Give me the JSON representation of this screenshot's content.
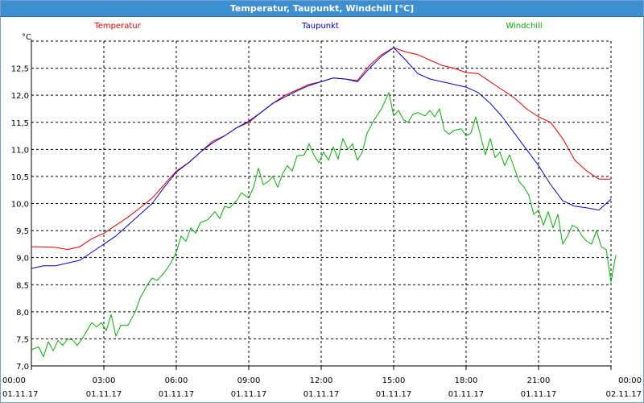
{
  "window": {
    "title": "Temperatur, Taupunkt, Windchill [°C]"
  },
  "chart_data": {
    "type": "line",
    "ylabel": "°C",
    "ylim": [
      7.0,
      13.0
    ],
    "yticks": [
      "7,0",
      "7,5",
      "8,0",
      "8,5",
      "9,0",
      "9,5",
      "10,0",
      "10,5",
      "11,0",
      "11,5",
      "12,0",
      "12,5"
    ],
    "xticks": [
      {
        "time": "00:00",
        "date": "01.11.17"
      },
      {
        "time": "03:00",
        "date": "01.11.17"
      },
      {
        "time": "06:00",
        "date": "01.11.17"
      },
      {
        "time": "09:00",
        "date": "01.11.17"
      },
      {
        "time": "12:00",
        "date": "01.11.17"
      },
      {
        "time": "15:00",
        "date": "01.11.17"
      },
      {
        "time": "18:00",
        "date": "01.11.17"
      },
      {
        "time": "21:00",
        "date": "01.11.17"
      },
      {
        "time": "00:00",
        "date": "02.11.17"
      }
    ],
    "grid": true,
    "legend_position": "top",
    "series": [
      {
        "name": "Temperatur",
        "color": "#e00000",
        "points": [
          [
            0,
            9.2
          ],
          [
            0.5,
            9.2
          ],
          [
            1,
            9.19
          ],
          [
            1.5,
            9.15
          ],
          [
            2,
            9.2
          ],
          [
            2.5,
            9.35
          ],
          [
            3,
            9.45
          ],
          [
            3.5,
            9.6
          ],
          [
            4,
            9.75
          ],
          [
            4.5,
            9.92
          ],
          [
            5,
            10.1
          ],
          [
            5.5,
            10.35
          ],
          [
            6,
            10.6
          ],
          [
            6.5,
            10.75
          ],
          [
            7,
            10.95
          ],
          [
            7.5,
            11.15
          ],
          [
            8,
            11.25
          ],
          [
            8.5,
            11.4
          ],
          [
            9,
            11.5
          ],
          [
            9.5,
            11.68
          ],
          [
            10,
            11.85
          ],
          [
            10.5,
            12.0
          ],
          [
            11,
            12.1
          ],
          [
            11.5,
            12.2
          ],
          [
            12,
            12.25
          ],
          [
            12.5,
            12.32
          ],
          [
            13,
            12.3
          ],
          [
            13.5,
            12.27
          ],
          [
            14,
            12.55
          ],
          [
            14.5,
            12.75
          ],
          [
            15,
            12.88
          ],
          [
            15.5,
            12.8
          ],
          [
            16,
            12.75
          ],
          [
            16.5,
            12.65
          ],
          [
            17,
            12.55
          ],
          [
            17.5,
            12.5
          ],
          [
            18,
            12.42
          ],
          [
            18.5,
            12.4
          ],
          [
            19,
            12.25
          ],
          [
            19.5,
            12.1
          ],
          [
            20,
            11.95
          ],
          [
            20.5,
            11.75
          ],
          [
            21,
            11.6
          ],
          [
            21.5,
            11.5
          ],
          [
            22,
            11.2
          ],
          [
            22.5,
            10.8
          ],
          [
            23,
            10.6
          ],
          [
            23.5,
            10.45
          ],
          [
            24,
            10.45
          ]
        ]
      },
      {
        "name": "Taupunkt",
        "color": "#0000c8",
        "points": [
          [
            0,
            8.8
          ],
          [
            0.5,
            8.85
          ],
          [
            1,
            8.85
          ],
          [
            1.5,
            8.9
          ],
          [
            2,
            8.95
          ],
          [
            2.5,
            9.1
          ],
          [
            3,
            9.25
          ],
          [
            3.5,
            9.4
          ],
          [
            4,
            9.6
          ],
          [
            4.5,
            9.8
          ],
          [
            5,
            10.0
          ],
          [
            5.5,
            10.3
          ],
          [
            6,
            10.58
          ],
          [
            6.5,
            10.75
          ],
          [
            7,
            10.95
          ],
          [
            7.5,
            11.12
          ],
          [
            8,
            11.25
          ],
          [
            8.5,
            11.4
          ],
          [
            9,
            11.52
          ],
          [
            9.5,
            11.68
          ],
          [
            10,
            11.85
          ],
          [
            10.5,
            11.97
          ],
          [
            11,
            12.08
          ],
          [
            11.5,
            12.18
          ],
          [
            12,
            12.25
          ],
          [
            12.5,
            12.32
          ],
          [
            13,
            12.3
          ],
          [
            13.5,
            12.25
          ],
          [
            14,
            12.5
          ],
          [
            14.5,
            12.72
          ],
          [
            15,
            12.88
          ],
          [
            15.5,
            12.65
          ],
          [
            16,
            12.4
          ],
          [
            16.5,
            12.3
          ],
          [
            17,
            12.25
          ],
          [
            17.5,
            12.2
          ],
          [
            18,
            12.15
          ],
          [
            18.5,
            12.05
          ],
          [
            19,
            11.85
          ],
          [
            19.5,
            11.6
          ],
          [
            20,
            11.3
          ],
          [
            20.5,
            11.0
          ],
          [
            21,
            10.7
          ],
          [
            21.5,
            10.35
          ],
          [
            22,
            10.05
          ],
          [
            22.5,
            9.95
          ],
          [
            23,
            9.92
          ],
          [
            23.5,
            9.88
          ],
          [
            24,
            10.08
          ]
        ]
      },
      {
        "name": "Windchill",
        "color": "#00b000",
        "points": [
          [
            0,
            7.3
          ],
          [
            0.3,
            7.35
          ],
          [
            0.5,
            7.17
          ],
          [
            0.7,
            7.45
          ],
          [
            0.9,
            7.28
          ],
          [
            1.1,
            7.47
          ],
          [
            1.3,
            7.38
          ],
          [
            1.5,
            7.5
          ],
          [
            1.7,
            7.48
          ],
          [
            1.9,
            7.38
          ],
          [
            2.1,
            7.5
          ],
          [
            2.3,
            7.65
          ],
          [
            2.5,
            7.8
          ],
          [
            2.7,
            7.72
          ],
          [
            2.9,
            7.8
          ],
          [
            3.1,
            7.65
          ],
          [
            3.3,
            7.95
          ],
          [
            3.5,
            7.55
          ],
          [
            3.7,
            7.75
          ],
          [
            4,
            7.75
          ],
          [
            4.3,
            8.0
          ],
          [
            4.5,
            8.25
          ],
          [
            4.8,
            8.5
          ],
          [
            5,
            8.62
          ],
          [
            5.2,
            8.58
          ],
          [
            5.5,
            8.72
          ],
          [
            5.8,
            8.92
          ],
          [
            6,
            9.1
          ],
          [
            6.2,
            9.4
          ],
          [
            6.4,
            9.3
          ],
          [
            6.6,
            9.55
          ],
          [
            6.8,
            9.45
          ],
          [
            7,
            9.65
          ],
          [
            7.3,
            9.7
          ],
          [
            7.6,
            9.85
          ],
          [
            7.8,
            9.72
          ],
          [
            8,
            9.95
          ],
          [
            8.2,
            9.92
          ],
          [
            8.5,
            10.05
          ],
          [
            8.7,
            10.2
          ],
          [
            9,
            10.1
          ],
          [
            9.2,
            10.3
          ],
          [
            9.4,
            10.65
          ],
          [
            9.6,
            10.35
          ],
          [
            9.8,
            10.4
          ],
          [
            10,
            10.5
          ],
          [
            10.2,
            10.3
          ],
          [
            10.4,
            10.55
          ],
          [
            10.6,
            10.7
          ],
          [
            10.8,
            10.6
          ],
          [
            11,
            10.88
          ],
          [
            11.3,
            10.9
          ],
          [
            11.5,
            11.1
          ],
          [
            11.7,
            10.9
          ],
          [
            11.9,
            10.75
          ],
          [
            12.1,
            10.95
          ],
          [
            12.3,
            10.8
          ],
          [
            12.5,
            11.05
          ],
          [
            12.7,
            10.82
          ],
          [
            12.9,
            11.2
          ],
          [
            13.1,
            11.0
          ],
          [
            13.3,
            11.1
          ],
          [
            13.5,
            10.8
          ],
          [
            13.7,
            10.95
          ],
          [
            13.9,
            11.3
          ],
          [
            14.2,
            11.55
          ],
          [
            14.5,
            11.75
          ],
          [
            14.8,
            12.05
          ],
          [
            15,
            11.62
          ],
          [
            15.2,
            11.72
          ],
          [
            15.4,
            11.55
          ],
          [
            15.6,
            11.5
          ],
          [
            15.8,
            11.65
          ],
          [
            16,
            11.68
          ],
          [
            16.3,
            11.62
          ],
          [
            16.5,
            11.72
          ],
          [
            16.7,
            11.6
          ],
          [
            16.9,
            11.75
          ],
          [
            17.1,
            11.35
          ],
          [
            17.3,
            11.28
          ],
          [
            17.5,
            11.35
          ],
          [
            17.8,
            11.38
          ],
          [
            18,
            11.25
          ],
          [
            18.2,
            11.3
          ],
          [
            18.4,
            11.6
          ],
          [
            18.6,
            11.25
          ],
          [
            18.8,
            10.9
          ],
          [
            19,
            11.2
          ],
          [
            19.2,
            10.85
          ],
          [
            19.4,
            10.95
          ],
          [
            19.6,
            10.7
          ],
          [
            19.8,
            10.9
          ],
          [
            20,
            10.65
          ],
          [
            20.2,
            10.4
          ],
          [
            20.4,
            10.3
          ],
          [
            20.6,
            10.15
          ],
          [
            20.8,
            9.8
          ],
          [
            21,
            9.88
          ],
          [
            21.2,
            9.6
          ],
          [
            21.4,
            9.85
          ],
          [
            21.6,
            9.55
          ],
          [
            21.8,
            9.8
          ],
          [
            22,
            9.25
          ],
          [
            22.2,
            9.4
          ],
          [
            22.4,
            9.6
          ],
          [
            22.6,
            9.55
          ],
          [
            22.8,
            9.4
          ],
          [
            23,
            9.3
          ],
          [
            23.2,
            9.25
          ],
          [
            23.4,
            9.5
          ],
          [
            23.6,
            9.2
          ],
          [
            23.8,
            9.15
          ],
          [
            24,
            8.55
          ],
          [
            24.2,
            9.05
          ]
        ]
      }
    ]
  }
}
